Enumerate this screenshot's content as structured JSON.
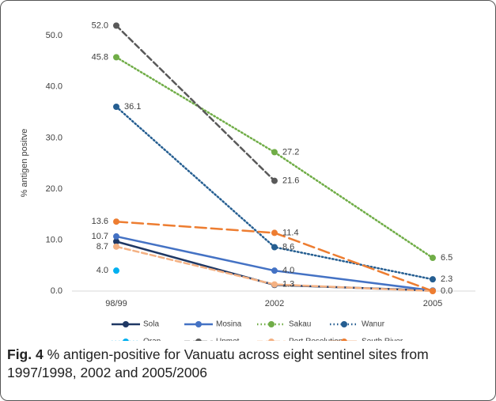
{
  "chart_data": {
    "type": "line",
    "y_label": "% antigen positve",
    "categories": [
      "98/99",
      "2002",
      "2005"
    ],
    "ylim": [
      0,
      55
    ],
    "yticks": [
      {
        "value": 0,
        "label": "0.0"
      },
      {
        "value": 10,
        "label": "10.0"
      },
      {
        "value": 20,
        "label": "20.0"
      },
      {
        "value": 30,
        "label": "30.0"
      },
      {
        "value": 40,
        "label": "40.0"
      },
      {
        "value": 50,
        "label": "50.0"
      }
    ],
    "series": [
      {
        "name": "Sola",
        "color": "#1f3864",
        "line_style": "solid",
        "values": [
          9.7,
          1.2,
          0.1
        ],
        "value_labels": [
          null,
          null,
          null
        ]
      },
      {
        "name": "Mosina",
        "color": "#4472c4",
        "line_style": "solid",
        "values": [
          10.7,
          4.0,
          0.1
        ],
        "value_labels": [
          "10.7",
          "4.0",
          null
        ]
      },
      {
        "name": "Sakau",
        "color": "#70ad47",
        "line_style": "dotted",
        "values": [
          45.8,
          27.2,
          6.5
        ],
        "value_labels": [
          "45.8",
          "27.2",
          "6.5"
        ]
      },
      {
        "name": "Wanur",
        "color": "#255e91",
        "line_style": "dotted",
        "values": [
          36.1,
          8.6,
          2.3
        ],
        "value_labels": [
          "36.1",
          "8.6",
          "2.3"
        ]
      },
      {
        "name": "Orap",
        "color": "#00b0f0",
        "line_style": "dotted",
        "values": [
          4.0,
          null,
          null
        ],
        "value_labels": [
          "4.0",
          null,
          null
        ]
      },
      {
        "name": "Unmet",
        "color": "#595959",
        "line_style": "dashed",
        "values": [
          52.0,
          21.6,
          null
        ],
        "value_labels": [
          "52.0",
          "21.6",
          null
        ]
      },
      {
        "name": "Port Resolution",
        "color": "#f4b183",
        "line_style": "dashed",
        "values": [
          8.7,
          1.3,
          0.0
        ],
        "value_labels": [
          "8.7",
          "1.3",
          null
        ]
      },
      {
        "name": "South River",
        "color": "#ed7d31",
        "line_style": "long-dash",
        "values": [
          13.6,
          11.4,
          0.0
        ],
        "value_labels": [
          "13.6",
          "11.4",
          "0.0"
        ]
      }
    ]
  },
  "caption": {
    "label": "Fig. 4",
    "text": "% antigen-positive for Vanuatu across eight sentinel sites from 1997/1998, 2002 and 2005/2006"
  }
}
